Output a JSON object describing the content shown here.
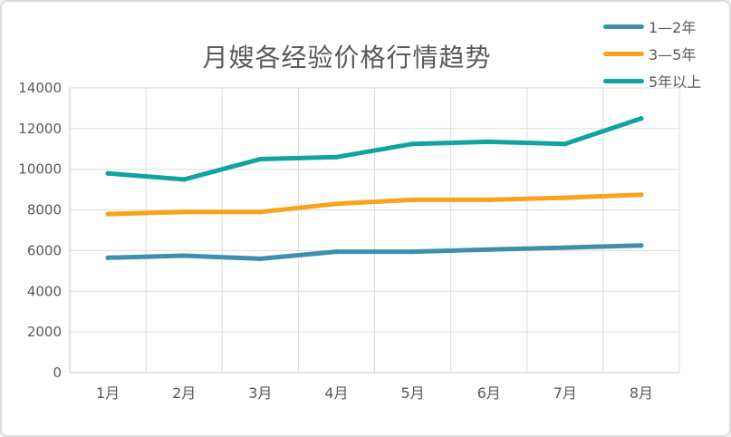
{
  "chart_data": {
    "type": "line",
    "title": "月嫂各经验价格行情趋势",
    "categories": [
      "1月",
      "2月",
      "3月",
      "4月",
      "5月",
      "6月",
      "7月",
      "8月"
    ],
    "series": [
      {
        "name": "1—2年",
        "color": "#3E8FAE",
        "values": [
          5650,
          5750,
          5600,
          5950,
          5950,
          6050,
          6150,
          6250
        ]
      },
      {
        "name": "3—5年",
        "color": "#F9A21B",
        "values": [
          7800,
          7900,
          7900,
          8300,
          8500,
          8500,
          8600,
          8750
        ]
      },
      {
        "name": "5年以上",
        "color": "#0FA4A0",
        "values": [
          9800,
          9500,
          10500,
          10600,
          11250,
          11350,
          11250,
          12500
        ]
      }
    ],
    "ylim": [
      0,
      14000
    ],
    "ytick_step": 2000,
    "yticks": [
      0,
      2000,
      4000,
      6000,
      8000,
      10000,
      12000,
      14000
    ],
    "grid": true,
    "legend_position": "top-right",
    "colors": {
      "grid_line": "#dbdbdb",
      "axis_line": "#c6c6c6",
      "tick_text": "#595959",
      "title_text": "#595959",
      "background": "#ffffff",
      "border": "#dcdcdc"
    }
  }
}
